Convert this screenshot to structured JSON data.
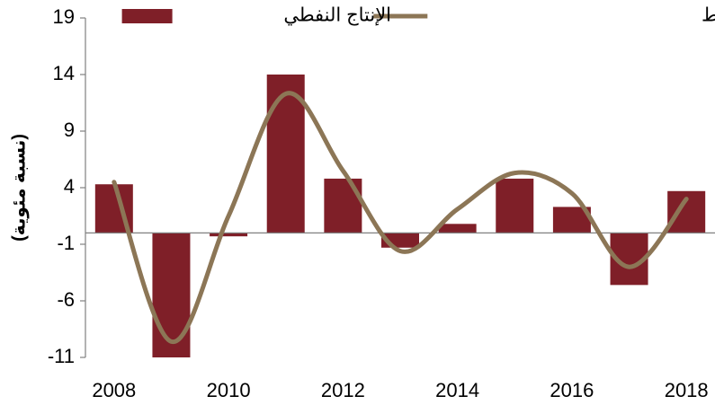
{
  "chart_data": {
    "type": "bar_line",
    "y_label": "(نسبة مئوية)",
    "categories": [
      "2008",
      null,
      "2010",
      null,
      "2012",
      null,
      "2014",
      null,
      "2016",
      null,
      "2018"
    ],
    "series": [
      {
        "name": "الإنتاج النفطي",
        "type": "bar",
        "color": "#7f1f28",
        "values": [
          4.3,
          -11,
          -0.3,
          14,
          4.8,
          -1.3,
          0.8,
          4.8,
          2.3,
          -4.6,
          3.7
        ]
      },
      {
        "name": "الناتج الإجمالي الفعلي لقطاع النفط",
        "type": "line",
        "color": "#8c7656",
        "values": [
          4.5,
          -9.6,
          1.5,
          12.3,
          5.5,
          -1.6,
          2.1,
          5.3,
          3.5,
          -3.0,
          3.0
        ]
      }
    ],
    "ylim": [
      -11,
      19
    ],
    "yticks": [
      -11,
      -6,
      -1,
      4,
      9,
      14,
      19
    ],
    "grid": false
  }
}
